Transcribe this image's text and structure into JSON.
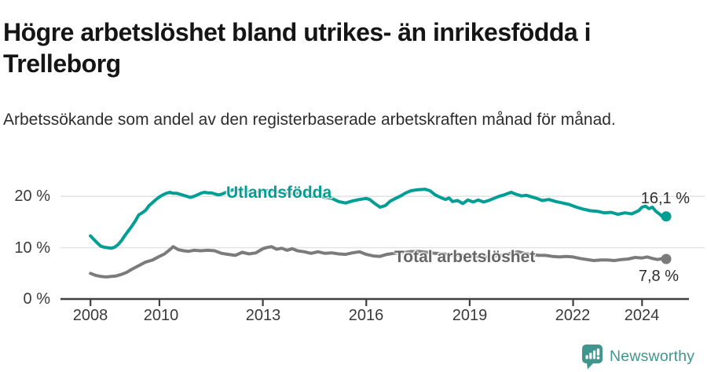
{
  "header": {
    "title": "Högre arbetslöshet bland utrikes- än inrikesfödda i Trelleborg",
    "subtitle": "Arbetssökande som andel av den registerbaserade arbetskraften månad för månad."
  },
  "colors": {
    "accent_teal": "#009e95",
    "series_gray": "#7b7b7b",
    "grid": "#e4e4e4",
    "axis": "#3f3f3f",
    "brand_teal": "#40968f"
  },
  "chart_data": {
    "type": "line",
    "title": "Högre arbetslöshet bland utrikes- än inrikesfödda i Trelleborg",
    "subtitle": "Arbetssökande som andel av den registerbaserade arbetskraften månad för månad.",
    "xlabel": "",
    "ylabel": "",
    "xlim": [
      2007.13,
      2025.36
    ],
    "ylim": [
      0,
      23.4
    ],
    "grid": "horizontal",
    "legend_position": "inline-labels",
    "x_ticks": [
      2008,
      2010,
      2013,
      2016,
      2019,
      2022,
      2024
    ],
    "x_tick_labels": [
      "2008",
      "2010",
      "2013",
      "2016",
      "2019",
      "2022",
      "2024"
    ],
    "y_ticks": [
      0,
      10,
      20
    ],
    "y_tick_labels": [
      "0 %",
      "10 %",
      "20 %"
    ],
    "series": [
      {
        "name": "Utlandsfödda",
        "color": "#009e95",
        "end_label": "16,1 %",
        "end_value": 16.1,
        "x": [
          2008.0,
          2008.1,
          2008.2,
          2008.3,
          2008.4,
          2008.5,
          2008.6,
          2008.7,
          2008.8,
          2008.9,
          2009.0,
          2009.1,
          2009.2,
          2009.3,
          2009.4,
          2009.5,
          2009.6,
          2009.7,
          2009.8,
          2009.9,
          2010.0,
          2010.1,
          2010.2,
          2010.3,
          2010.4,
          2010.5,
          2010.6,
          2010.7,
          2010.8,
          2010.9,
          2011.0,
          2011.1,
          2011.2,
          2011.3,
          2011.4,
          2011.5,
          2011.6,
          2011.7,
          2011.8,
          2011.9,
          2012.0,
          2012.2,
          2012.4,
          2012.6,
          2012.8,
          2013.0,
          2013.2,
          2013.4,
          2013.6,
          2013.8,
          2014.0,
          2014.2,
          2014.4,
          2014.6,
          2014.8,
          2015.0,
          2015.2,
          2015.4,
          2015.6,
          2015.8,
          2016.0,
          2016.1,
          2016.25,
          2016.4,
          2016.55,
          2016.7,
          2016.85,
          2017.0,
          2017.15,
          2017.3,
          2017.5,
          2017.7,
          2017.85,
          2018.0,
          2018.15,
          2018.3,
          2018.4,
          2018.5,
          2018.65,
          2018.8,
          2018.95,
          2019.1,
          2019.25,
          2019.4,
          2019.55,
          2019.7,
          2019.85,
          2020.0,
          2020.2,
          2020.35,
          2020.5,
          2020.65,
          2020.8,
          2020.95,
          2021.1,
          2021.3,
          2021.5,
          2021.7,
          2021.9,
          2022.1,
          2022.3,
          2022.5,
          2022.7,
          2022.9,
          2023.1,
          2023.3,
          2023.5,
          2023.7,
          2023.9,
          2024.0,
          2024.1,
          2024.2,
          2024.3,
          2024.4,
          2024.5,
          2024.6,
          2024.7
        ],
        "values": [
          12.3,
          11.6,
          10.9,
          10.3,
          10.1,
          10.0,
          9.9,
          10.1,
          10.6,
          11.4,
          12.4,
          13.3,
          14.2,
          15.2,
          16.4,
          16.8,
          17.3,
          18.2,
          18.8,
          19.4,
          19.9,
          20.3,
          20.6,
          20.8,
          20.6,
          20.6,
          20.4,
          20.2,
          20.0,
          19.8,
          20.0,
          20.3,
          20.6,
          20.8,
          20.7,
          20.7,
          20.5,
          20.3,
          20.4,
          20.7,
          21.0,
          21.4,
          21.2,
          21.0,
          20.8,
          21.0,
          21.2,
          20.9,
          20.7,
          20.5,
          20.6,
          20.3,
          20.0,
          20.1,
          19.8,
          19.6,
          19.0,
          18.7,
          19.1,
          19.4,
          19.6,
          19.4,
          18.6,
          17.9,
          18.2,
          19.1,
          19.6,
          20.1,
          20.7,
          21.1,
          21.3,
          21.4,
          21.1,
          20.3,
          19.8,
          19.4,
          19.7,
          19.0,
          19.2,
          18.6,
          19.3,
          18.9,
          19.3,
          18.9,
          19.2,
          19.6,
          20.0,
          20.3,
          20.8,
          20.4,
          20.1,
          20.2,
          19.9,
          19.6,
          19.2,
          19.4,
          19.0,
          18.7,
          18.4,
          17.9,
          17.5,
          17.2,
          17.1,
          16.8,
          16.9,
          16.5,
          16.8,
          16.6,
          17.2,
          17.9,
          18.1,
          17.6,
          17.9,
          17.1,
          16.6,
          16.0,
          16.1
        ]
      },
      {
        "name": "Total arbetslöshet",
        "color": "#7b7b7b",
        "end_label": "7,8 %",
        "end_value": 7.8,
        "x": [
          2008.0,
          2008.15,
          2008.3,
          2008.45,
          2008.6,
          2008.75,
          2008.9,
          2009.05,
          2009.2,
          2009.4,
          2009.6,
          2009.8,
          2010.0,
          2010.15,
          2010.3,
          2010.4,
          2010.55,
          2010.7,
          2010.85,
          2011.0,
          2011.2,
          2011.4,
          2011.6,
          2011.8,
          2012.0,
          2012.2,
          2012.4,
          2012.6,
          2012.8,
          2013.0,
          2013.1,
          2013.25,
          2013.4,
          2013.55,
          2013.7,
          2013.85,
          2014.0,
          2014.2,
          2014.4,
          2014.6,
          2014.8,
          2015.0,
          2015.2,
          2015.4,
          2015.6,
          2015.8,
          2016.0,
          2016.2,
          2016.4,
          2016.6,
          2016.8,
          2017.0,
          2017.25,
          2017.5,
          2017.75,
          2018.0,
          2018.25,
          2018.5,
          2018.75,
          2019.0,
          2019.25,
          2019.5,
          2019.75,
          2020.0,
          2020.2,
          2020.4,
          2020.6,
          2020.8,
          2021.0,
          2021.2,
          2021.4,
          2021.6,
          2021.8,
          2022.0,
          2022.2,
          2022.4,
          2022.6,
          2022.8,
          2023.0,
          2023.2,
          2023.4,
          2023.6,
          2023.8,
          2024.0,
          2024.15,
          2024.3,
          2024.45,
          2024.6,
          2024.7
        ],
        "values": [
          5.0,
          4.6,
          4.4,
          4.3,
          4.4,
          4.5,
          4.8,
          5.2,
          5.8,
          6.5,
          7.2,
          7.6,
          8.3,
          8.8,
          9.6,
          10.2,
          9.6,
          9.4,
          9.3,
          9.5,
          9.4,
          9.5,
          9.4,
          8.9,
          8.7,
          8.5,
          9.1,
          8.8,
          9.0,
          9.8,
          10.0,
          10.2,
          9.7,
          9.9,
          9.5,
          9.8,
          9.4,
          9.2,
          8.9,
          9.2,
          8.9,
          9.0,
          8.8,
          8.7,
          9.0,
          9.2,
          8.7,
          8.4,
          8.3,
          8.7,
          8.9,
          9.0,
          9.2,
          9.3,
          9.1,
          8.9,
          8.8,
          8.6,
          8.5,
          8.4,
          8.3,
          8.2,
          8.4,
          8.6,
          8.9,
          9.2,
          8.9,
          8.7,
          8.5,
          8.5,
          8.3,
          8.2,
          8.3,
          8.2,
          7.9,
          7.7,
          7.5,
          7.6,
          7.6,
          7.5,
          7.7,
          7.8,
          8.1,
          8.0,
          8.2,
          7.9,
          7.7,
          7.9,
          7.8
        ]
      }
    ]
  },
  "footer": {
    "brand": "Newsworthy"
  }
}
